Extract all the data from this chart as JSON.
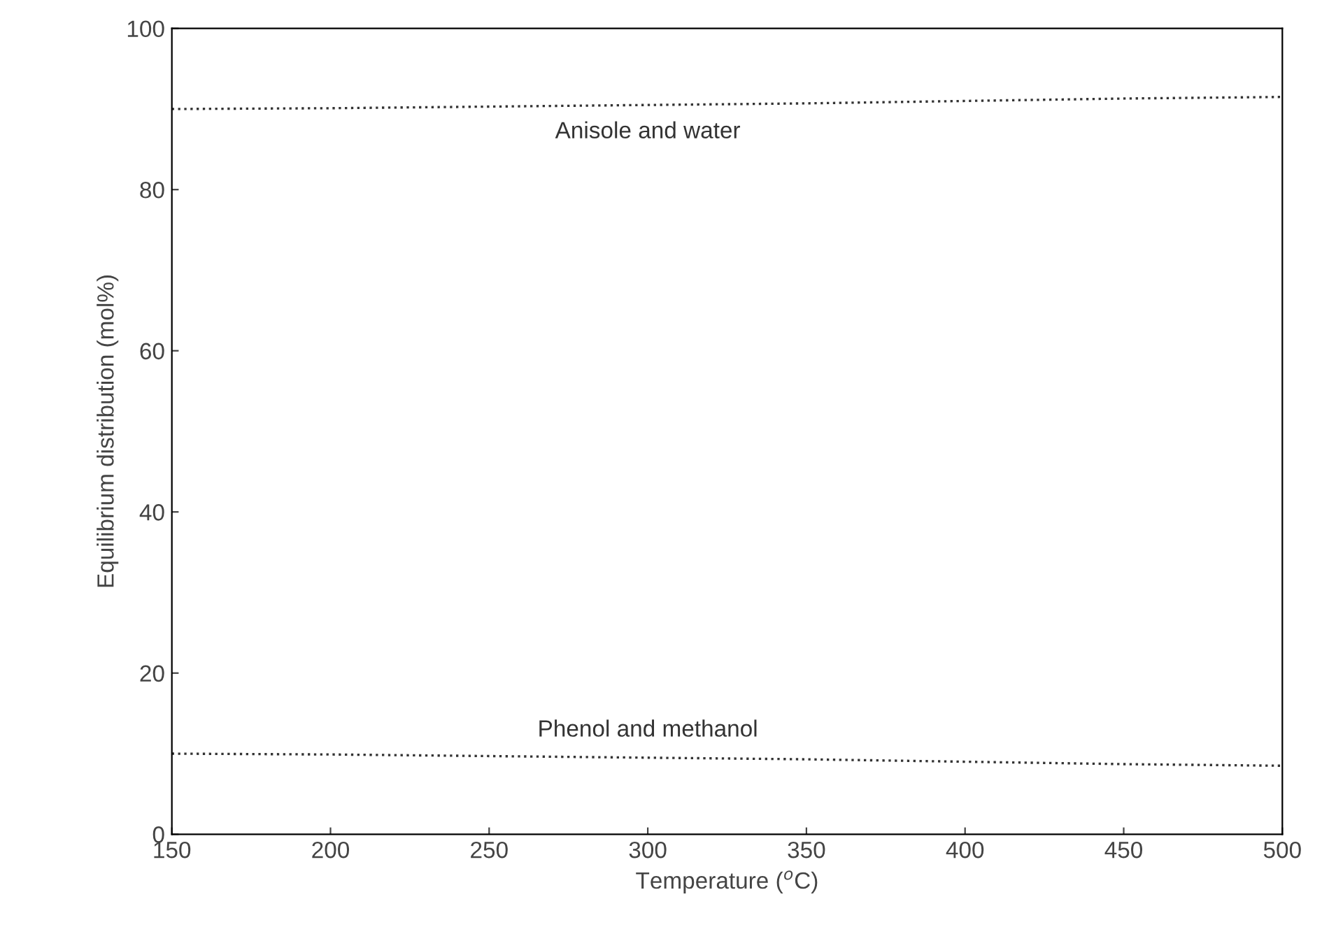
{
  "chart_data": {
    "type": "line",
    "xlabel": "Temperature ($^{o}$C)",
    "ylabel": "Equilibrium distribution (mol%)",
    "x": [
      150,
      200,
      250,
      300,
      350,
      400,
      450,
      500
    ],
    "series": [
      {
        "name": "Anisole and water",
        "color": "#333333",
        "values": [
          90.0,
          90.1,
          90.3,
          90.5,
          90.7,
          91.0,
          91.3,
          91.5
        ]
      },
      {
        "name": "Phenol and methanol",
        "color": "#333333",
        "values": [
          10.0,
          9.9,
          9.7,
          9.5,
          9.3,
          9.0,
          8.7,
          8.5
        ]
      }
    ],
    "xlim": [
      150,
      500
    ],
    "ylim": [
      0,
      100
    ],
    "xticks": [
      150,
      200,
      250,
      300,
      350,
      400,
      450,
      500
    ],
    "yticks": [
      0,
      20,
      40,
      60,
      80,
      100
    ],
    "grid": false,
    "legend": false,
    "marker": "none",
    "line_style": "dotted"
  }
}
